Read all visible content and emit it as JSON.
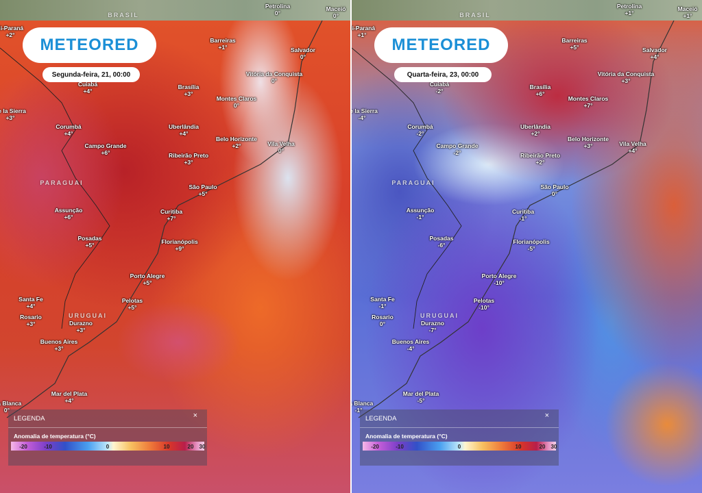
{
  "top_label": "BRASIL",
  "countries": [
    "PARAGUAI",
    "URUGUAI"
  ],
  "legend": {
    "title": "LEGENDA",
    "close": "×",
    "subtitle": "Anomalia de temperatura (°C)",
    "ticks": [
      "-20",
      "-10",
      "0",
      "10",
      "20",
      "30"
    ]
  },
  "panels": [
    {
      "logo": "METEORED",
      "date": "Segunda-feira, 21, 00:00",
      "cities": [
        {
          "name": "Ji-Paraná",
          "value": "+2°"
        },
        {
          "name": "Petrolina",
          "value": "0°"
        },
        {
          "name": "Maceió",
          "value": "0°"
        },
        {
          "name": "Barreiras",
          "value": "+1°"
        },
        {
          "name": "Salvador",
          "value": "0°"
        },
        {
          "name": "Cuiabá",
          "value": "+4°"
        },
        {
          "name": "Brasília",
          "value": "+3°"
        },
        {
          "name": "Vitória da Conquista",
          "value": "0°"
        },
        {
          "name": "Montes Claros",
          "value": "0°"
        },
        {
          "name": "de la Sierra",
          "value": "+3°"
        },
        {
          "name": "Corumbá",
          "value": "+4°"
        },
        {
          "name": "Uberlândia",
          "value": "+4°"
        },
        {
          "name": "Campo Grande",
          "value": "+6°"
        },
        {
          "name": "Belo Horizonte",
          "value": "+2°"
        },
        {
          "name": "Ribeirão Preto",
          "value": "+3°"
        },
        {
          "name": "Vila Velha",
          "value": "0°"
        },
        {
          "name": "São Paulo",
          "value": "+5°"
        },
        {
          "name": "Assunção",
          "value": "+6°"
        },
        {
          "name": "Curitiba",
          "value": "+7°"
        },
        {
          "name": "Posadas",
          "value": "+5°"
        },
        {
          "name": "Florianópolis",
          "value": "+9°"
        },
        {
          "name": "Porto Alegre",
          "value": "+5°"
        },
        {
          "name": "Santa Fe",
          "value": "+4°"
        },
        {
          "name": "Pelotas",
          "value": "+5°"
        },
        {
          "name": "Rosario",
          "value": "+3°"
        },
        {
          "name": "Durazno",
          "value": "+3°"
        },
        {
          "name": "Buenos Aires",
          "value": "+3°"
        },
        {
          "name": "Mar del Plata",
          "value": "+4°"
        },
        {
          "name": "hia Blanca",
          "value": "0°"
        }
      ]
    },
    {
      "logo": "METEORED",
      "date": "Quarta-feira, 23, 00:00",
      "cities": [
        {
          "name": "Ji-Paraná",
          "value": "+1°"
        },
        {
          "name": "Petrolina",
          "value": "+1°"
        },
        {
          "name": "Maceió",
          "value": "+1°"
        },
        {
          "name": "Barreiras",
          "value": "+5°"
        },
        {
          "name": "Salvador",
          "value": "+4°"
        },
        {
          "name": "Cuiabá",
          "value": "-2°"
        },
        {
          "name": "Brasília",
          "value": "+6°"
        },
        {
          "name": "Vitória da Conquista",
          "value": "+3°"
        },
        {
          "name": "Montes Claros",
          "value": "+7°"
        },
        {
          "name": "de la Sierra",
          "value": "-4°"
        },
        {
          "name": "Corumbá",
          "value": "-2°"
        },
        {
          "name": "Uberlândia",
          "value": "+2°"
        },
        {
          "name": "Campo Grande",
          "value": "-2°"
        },
        {
          "name": "Belo Horizonte",
          "value": "+3°"
        },
        {
          "name": "Ribeirão Preto",
          "value": "+2°"
        },
        {
          "name": "Vila Velha",
          "value": "+4°"
        },
        {
          "name": "São Paulo",
          "value": "0°"
        },
        {
          "name": "Assunção",
          "value": "-1°"
        },
        {
          "name": "Curitiba",
          "value": "-1°"
        },
        {
          "name": "Posadas",
          "value": "-6°"
        },
        {
          "name": "Florianópolis",
          "value": "-5°"
        },
        {
          "name": "Porto Alegre",
          "value": "-10°"
        },
        {
          "name": "Santa Fe",
          "value": "-1°"
        },
        {
          "name": "Pelotas",
          "value": "-10°"
        },
        {
          "name": "Rosario",
          "value": "0°"
        },
        {
          "name": "Durazno",
          "value": "-7°"
        },
        {
          "name": "Buenos Aires",
          "value": "-4°"
        },
        {
          "name": "Mar del Plata",
          "value": "-5°"
        },
        {
          "name": "hia Blanca",
          "value": "-1°"
        }
      ]
    }
  ]
}
